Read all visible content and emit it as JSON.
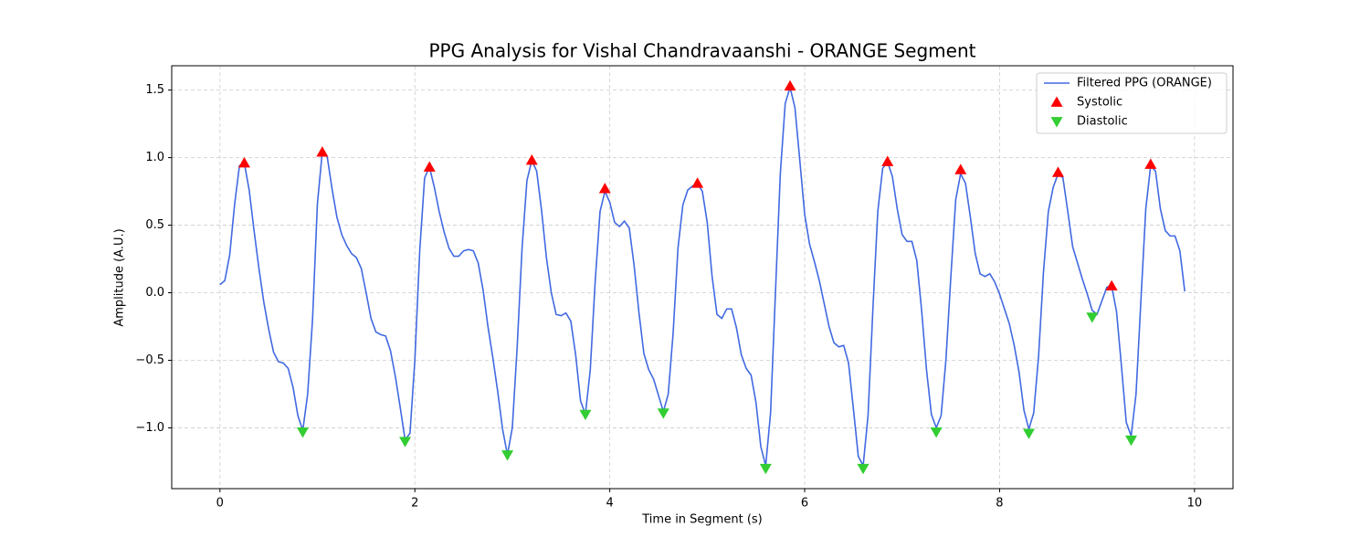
{
  "chart_data": {
    "type": "line",
    "title": "PPG Analysis for Vishal Chandravaanshi - ORANGE Segment",
    "xlabel": "Time in Segment (s)",
    "ylabel": "Amplitude (A.U.)",
    "xlim": [
      -0.495,
      10.395
    ],
    "ylim": [
      -1.45,
      1.68
    ],
    "xticks": [
      0,
      2,
      4,
      6,
      8,
      10
    ],
    "yticks": [
      {
        "value": -1,
        "label": "−1.0"
      },
      {
        "value": -0.5,
        "label": "−0.5"
      },
      {
        "value": 0,
        "label": "0.0"
      },
      0.5,
      {
        "value": 1,
        "label": "1.0"
      },
      1.5
    ],
    "grid": true,
    "legend": "upper right",
    "series": [
      {
        "name": "Filtered PPG (ORANGE)",
        "type": "line",
        "color": "#4169e1",
        "x": [
          0,
          0.05,
          0.1,
          0.15,
          0.2,
          0.25,
          0.3,
          0.35,
          0.4,
          0.45,
          0.5,
          0.55,
          0.6,
          0.65,
          0.7,
          0.75,
          0.8,
          0.85,
          0.9,
          0.95,
          1,
          1.05,
          1.1,
          1.15,
          1.2,
          1.25,
          1.3,
          1.35,
          1.4,
          1.45,
          1.5,
          1.55,
          1.6,
          1.65,
          1.7,
          1.75,
          1.8,
          1.85,
          1.9,
          1.95,
          2,
          2.05,
          2.1,
          2.15,
          2.2,
          2.25,
          2.3,
          2.35,
          2.4,
          2.45,
          2.5,
          2.55,
          2.6,
          2.65,
          2.7,
          2.75,
          2.8,
          2.85,
          2.9,
          2.95,
          3,
          3.05,
          3.1,
          3.15,
          3.2,
          3.25,
          3.3,
          3.35,
          3.4,
          3.45,
          3.5,
          3.55,
          3.6,
          3.65,
          3.7,
          3.75,
          3.8,
          3.85,
          3.9,
          3.95,
          4,
          4.05,
          4.1,
          4.15,
          4.2,
          4.25,
          4.3,
          4.35,
          4.4,
          4.45,
          4.5,
          4.55,
          4.6,
          4.65,
          4.7,
          4.75,
          4.8,
          4.85,
          4.9,
          4.95,
          5,
          5.05,
          5.1,
          5.15,
          5.2,
          5.25,
          5.3,
          5.35,
          5.4,
          5.45,
          5.5,
          5.55,
          5.6,
          5.65,
          5.7,
          5.75,
          5.8,
          5.85,
          5.9,
          5.95,
          6,
          6.05,
          6.1,
          6.15,
          6.2,
          6.25,
          6.3,
          6.35,
          6.4,
          6.45,
          6.5,
          6.55,
          6.6,
          6.65,
          6.7,
          6.75,
          6.8,
          6.85,
          6.9,
          6.95,
          7,
          7.05,
          7.1,
          7.15,
          7.2,
          7.25,
          7.3,
          7.35,
          7.4,
          7.45,
          7.5,
          7.55,
          7.6,
          7.65,
          7.7,
          7.75,
          7.8,
          7.85,
          7.9,
          7.95,
          8,
          8.05,
          8.1,
          8.15,
          8.2,
          8.25,
          8.3,
          8.35,
          8.4,
          8.45,
          8.5,
          8.55,
          8.6,
          8.65,
          8.7,
          8.75,
          8.8,
          8.85,
          8.9,
          8.95,
          9,
          9.05,
          9.1,
          9.15,
          9.2,
          9.25,
          9.3,
          9.35,
          9.4,
          9.45,
          9.5,
          9.55,
          9.6,
          9.65,
          9.7,
          9.75,
          9.8,
          9.85,
          9.9
        ],
        "values": [
          0.06,
          0.09,
          0.28,
          0.65,
          0.94,
          0.96,
          0.76,
          0.46,
          0.18,
          -0.07,
          -0.27,
          -0.44,
          -0.51,
          -0.52,
          -0.56,
          -0.7,
          -0.91,
          -1.02,
          -0.75,
          -0.2,
          0.66,
          1.04,
          1.01,
          0.77,
          0.56,
          0.43,
          0.35,
          0.29,
          0.26,
          0.18,
          0.0,
          -0.19,
          -0.29,
          -0.31,
          -0.32,
          -0.43,
          -0.62,
          -0.85,
          -1.09,
          -1.04,
          -0.5,
          0.31,
          0.85,
          0.93,
          0.78,
          0.6,
          0.45,
          0.33,
          0.27,
          0.27,
          0.31,
          0.32,
          0.31,
          0.22,
          0.02,
          -0.25,
          -0.48,
          -0.73,
          -1.01,
          -1.2,
          -1.0,
          -0.4,
          0.33,
          0.83,
          0.98,
          0.9,
          0.61,
          0.26,
          0.0,
          -0.16,
          -0.17,
          -0.15,
          -0.21,
          -0.46,
          -0.8,
          -0.9,
          -0.57,
          0.08,
          0.6,
          0.75,
          0.67,
          0.52,
          0.49,
          0.53,
          0.48,
          0.2,
          -0.15,
          -0.45,
          -0.57,
          -0.64,
          -0.76,
          -0.88,
          -0.75,
          -0.3,
          0.33,
          0.65,
          0.76,
          0.79,
          0.81,
          0.75,
          0.52,
          0.12,
          -0.16,
          -0.19,
          -0.12,
          -0.12,
          -0.26,
          -0.46,
          -0.56,
          -0.61,
          -0.81,
          -1.14,
          -1.28,
          -0.89,
          0.0,
          0.88,
          1.4,
          1.52,
          1.37,
          0.98,
          0.58,
          0.36,
          0.23,
          0.09,
          -0.08,
          -0.25,
          -0.37,
          -0.4,
          -0.39,
          -0.52,
          -0.86,
          -1.21,
          -1.28,
          -0.91,
          -0.12,
          0.6,
          0.92,
          0.97,
          0.86,
          0.62,
          0.43,
          0.38,
          0.38,
          0.24,
          -0.13,
          -0.57,
          -0.9,
          -1.0,
          -0.91,
          -0.49,
          0.12,
          0.69,
          0.88,
          0.81,
          0.56,
          0.29,
          0.14,
          0.12,
          0.14,
          0.08,
          -0.01,
          -0.12,
          -0.23,
          -0.39,
          -0.59,
          -0.87,
          -1.01,
          -0.89,
          -0.47,
          0.15,
          0.6,
          0.78,
          0.88,
          0.85,
          0.6,
          0.34,
          0.22,
          0.1,
          -0.01,
          -0.13,
          -0.16,
          -0.06,
          0.04,
          0.05,
          -0.14,
          -0.54,
          -0.96,
          -1.06,
          -0.75,
          -0.06,
          0.62,
          0.94,
          0.9,
          0.62,
          0.46,
          0.42,
          0.42,
          0.31,
          0.01
        ]
      },
      {
        "name": "Systolic",
        "type": "scatter",
        "marker": "triangle-up",
        "color": "#ff0000",
        "x": [
          0.25,
          1.05,
          2.15,
          3.2,
          3.95,
          4.9,
          5.85,
          6.85,
          7.6,
          8.6,
          9.15,
          9.55
        ],
        "values": [
          0.96,
          1.04,
          0.93,
          0.98,
          0.77,
          0.81,
          1.53,
          0.97,
          0.91,
          0.89,
          0.05,
          0.95
        ]
      },
      {
        "name": "Diastolic",
        "type": "scatter",
        "marker": "triangle-down",
        "color": "#32cd32",
        "x": [
          0.85,
          1.9,
          2.95,
          3.75,
          4.55,
          5.6,
          6.6,
          7.35,
          8.3,
          8.95,
          9.35
        ],
        "values": [
          -1.03,
          -1.1,
          -1.2,
          -0.9,
          -0.89,
          -1.3,
          -1.3,
          -1.03,
          -1.04,
          -0.18,
          -1.09
        ]
      }
    ]
  }
}
